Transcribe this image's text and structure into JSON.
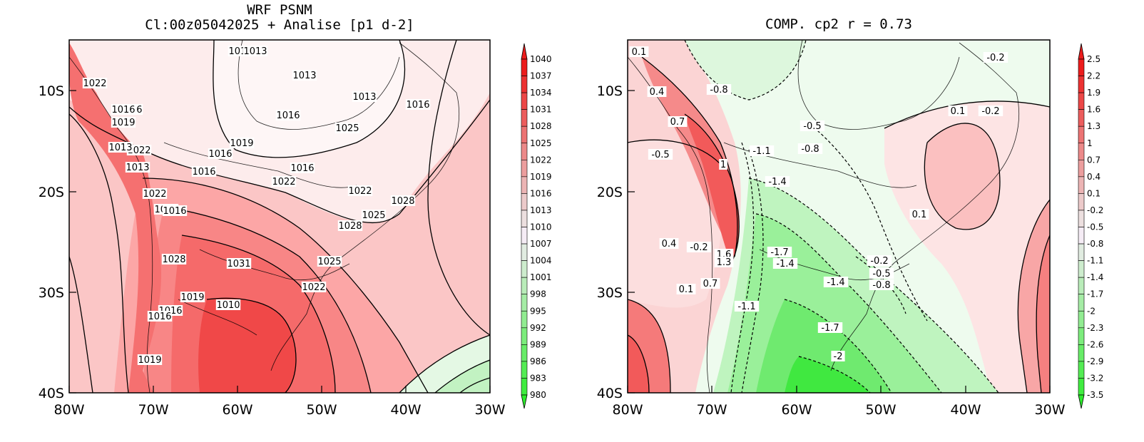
{
  "left_panel": {
    "title_line1": "WRF PSNM",
    "title_line2": "Cl:00z05042025 + Analise  [p1 d-2]",
    "colorbar_labels": [
      "1040",
      "1037",
      "1034",
      "1031",
      "1028",
      "1025",
      "1022",
      "1019",
      "1016",
      "1013",
      "1010",
      "1007",
      "1004",
      "1001",
      "998",
      "995",
      "992",
      "989",
      "986",
      "983",
      "980"
    ],
    "contour_labels": [
      "1022",
      "1016",
      "1019",
      "1022",
      "1013",
      "1016",
      "1022",
      "1019",
      "1016",
      "1013",
      "1013",
      "1013",
      "1016",
      "1013",
      "1016",
      "1025",
      "1019",
      "1016",
      "1016",
      "1016",
      "1022",
      "1022",
      "1028",
      "1025",
      "1028",
      "1028",
      "1031",
      "1025",
      "1022",
      "1019",
      "1010",
      "1016",
      "1016",
      "1019",
      "1013"
    ]
  },
  "right_panel": {
    "title": "COMP. cp2  r =  0.73",
    "colorbar_labels": [
      "2.5",
      "2.2",
      "1.9",
      "1.6",
      "1.3",
      "1",
      "0.7",
      "0.4",
      "0.1",
      "-0.2",
      "-0.5",
      "-0.8",
      "-1.1",
      "-1.4",
      "-1.7",
      "-2",
      "-2.3",
      "-2.6",
      "-2.9",
      "-3.2",
      "-3.5"
    ],
    "contour_labels": [
      "0.1",
      "0.4",
      "-0.8",
      "0.7",
      "-0.5",
      "-0.5",
      "-1.1",
      "-0.8",
      "1",
      "-1.4",
      "0.4",
      "-0.2",
      "1.6",
      "1.3",
      "-1.7",
      "-1.4",
      "0.1",
      "0.7",
      "-1.1",
      "-1.4",
      "-1.7",
      "-2",
      "-0.2",
      "0.1",
      "-0.2",
      "0.1",
      "-0.2",
      "-0.5",
      "-0.8"
    ]
  },
  "x_ticks": [
    "80W",
    "70W",
    "60W",
    "50W",
    "40W",
    "30W"
  ],
  "y_ticks": [
    "10S",
    "20S",
    "30S",
    "40S"
  ],
  "colors": {
    "left_high": "#f04848",
    "left_mid": "#fbb6b6",
    "left_low": "#fde6e6",
    "right_pos": "#f25a5a",
    "right_neg": "#8ef08e",
    "green_end": "#2cec2c",
    "red_end": "#ec1c1c"
  }
}
